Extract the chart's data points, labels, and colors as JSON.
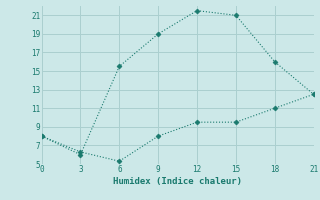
{
  "xlabel": "Humidex (Indice chaleur)",
  "line1_x": [
    0,
    3,
    6,
    9,
    12,
    15,
    18,
    21
  ],
  "line1_y": [
    8,
    6,
    15.5,
    19,
    21.5,
    21,
    16,
    12.5
  ],
  "line2_x": [
    0,
    3,
    6,
    9,
    12,
    15,
    18,
    21
  ],
  "line2_y": [
    8,
    6.3,
    5.3,
    8,
    9.5,
    9.5,
    11,
    12.5
  ],
  "line_color": "#1a7a6e",
  "bg_color": "#cce8e8",
  "grid_color": "#aacfcf",
  "xlim": [
    0,
    21
  ],
  "ylim": [
    5,
    22
  ],
  "xticks": [
    0,
    3,
    6,
    9,
    12,
    15,
    18,
    21
  ],
  "yticks": [
    5,
    7,
    9,
    11,
    13,
    15,
    17,
    19,
    21
  ],
  "markersize": 2.5,
  "linewidth": 0.8
}
